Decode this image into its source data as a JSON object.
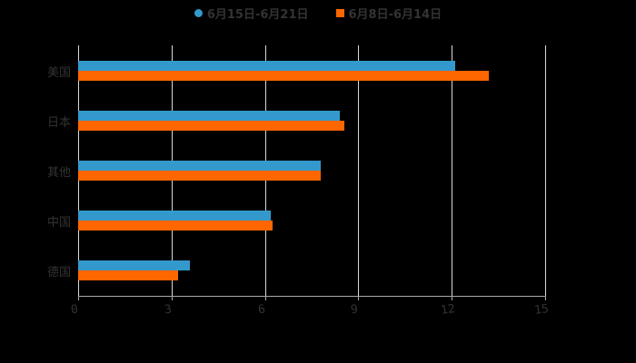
{
  "chart_data": {
    "type": "bar",
    "orientation": "horizontal",
    "title": "",
    "xlabel": "",
    "ylabel": "",
    "categories": [
      "美国",
      "日本",
      "其他",
      "中国",
      "德国"
    ],
    "series": [
      {
        "name": "6月15日-6月21日",
        "color": "#3399cc",
        "values": [
          12.1,
          8.4,
          7.8,
          6.2,
          3.6
        ]
      },
      {
        "name": "6月8日-6月14日",
        "color": "#ff6600",
        "values": [
          13.2,
          8.55,
          7.8,
          6.25,
          3.2
        ]
      }
    ],
    "xlim": [
      0,
      15
    ],
    "xticks": [
      "0",
      "3",
      "6",
      "9",
      "12",
      "15"
    ],
    "grid": true,
    "legend_position": "top"
  },
  "legend": {
    "items": [
      {
        "label": "6月15日-6月21日",
        "color": "#3399cc",
        "marker": "circle"
      },
      {
        "label": "6月8日-6月14日",
        "color": "#ff6600",
        "marker": "square"
      }
    ]
  }
}
